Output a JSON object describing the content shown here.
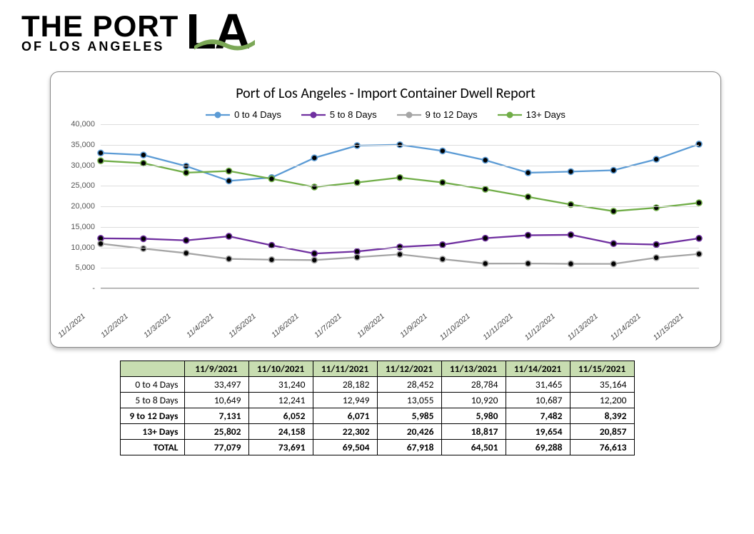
{
  "logo": {
    "line1": "THE PORT",
    "line2": "OF LOS ANGELES",
    "mark_letter1": "L",
    "mark_letter2": "A",
    "swoosh_color": "#7ba756"
  },
  "chart": {
    "type": "line",
    "title": "Port of Los Angeles - Import Container Dwell Report",
    "title_fontsize": 20,
    "background_color": "#ffffff",
    "grid_color": "#dddddd",
    "axis_color": "#999999",
    "x_labels": [
      "11/1/2021",
      "11/2/2021",
      "11/3/2021",
      "11/4/2021",
      "11/5/2021",
      "11/6/2021",
      "11/7/2021",
      "11/8/2021",
      "11/9/2021",
      "11/10/2021",
      "11/11/2021",
      "11/12/2021",
      "11/13/2021",
      "11/14/2021",
      "11/15/2021"
    ],
    "x_label_fontsize": 10.5,
    "x_label_rotation": -40,
    "ylim": [
      0,
      40000
    ],
    "ytick_step": 5000,
    "y_label_fontsize": 11,
    "marker_radius": 4,
    "line_width": 2.3,
    "legend_position": "top-center",
    "legend_fontsize": 13,
    "series": [
      {
        "name": "0 to 4 Days",
        "color": "#5b9bd5",
        "values": [
          33000,
          32500,
          29800,
          26200,
          27000,
          31800,
          34800,
          35000,
          33497,
          31240,
          28182,
          28452,
          28784,
          31465,
          35164
        ]
      },
      {
        "name": "5 to 8 Days",
        "color": "#7030a0",
        "values": [
          12200,
          12100,
          11700,
          12700,
          10500,
          8500,
          9000,
          10100,
          10649,
          12241,
          12949,
          13055,
          10920,
          10687,
          12200
        ]
      },
      {
        "name": "9 to 12 Days",
        "color": "#a5a5a5",
        "values": [
          10900,
          9700,
          8600,
          7200,
          7000,
          6900,
          7600,
          8300,
          7131,
          6052,
          6071,
          5985,
          5980,
          7482,
          8392
        ]
      },
      {
        "name": "13+  Days",
        "color": "#70ad47",
        "values": [
          31100,
          30500,
          28200,
          28600,
          26700,
          24700,
          25800,
          27000,
          25802,
          24158,
          22302,
          20426,
          18817,
          19654,
          20857
        ]
      }
    ]
  },
  "table": {
    "header_bg": "#c8ddb1",
    "border_color": "#000000",
    "fontsize": 13.5,
    "columns": [
      "11/9/2021",
      "11/10/2021",
      "11/11/2021",
      "11/12/2021",
      "11/13/2021",
      "11/14/2021",
      "11/15/2021"
    ],
    "rows": [
      {
        "label": "0 to 4 Days",
        "bold": false,
        "cells": [
          "33,497",
          "31,240",
          "28,182",
          "28,452",
          "28,784",
          "31,465",
          "35,164"
        ]
      },
      {
        "label": "5 to 8 Days",
        "bold": false,
        "cells": [
          "10,649",
          "12,241",
          "12,949",
          "13,055",
          "10,920",
          "10,687",
          "12,200"
        ]
      },
      {
        "label": "9 to 12 Days",
        "bold": true,
        "cells": [
          "7,131",
          "6,052",
          "6,071",
          "5,985",
          "5,980",
          "7,482",
          "8,392"
        ]
      },
      {
        "label": "13+  Days",
        "bold": true,
        "cells": [
          "25,802",
          "24,158",
          "22,302",
          "20,426",
          "18,817",
          "19,654",
          "20,857"
        ]
      }
    ],
    "total": {
      "label": "TOTAL",
      "cells": [
        "77,079",
        "73,691",
        "69,504",
        "67,918",
        "64,501",
        "69,288",
        "76,613"
      ]
    }
  }
}
